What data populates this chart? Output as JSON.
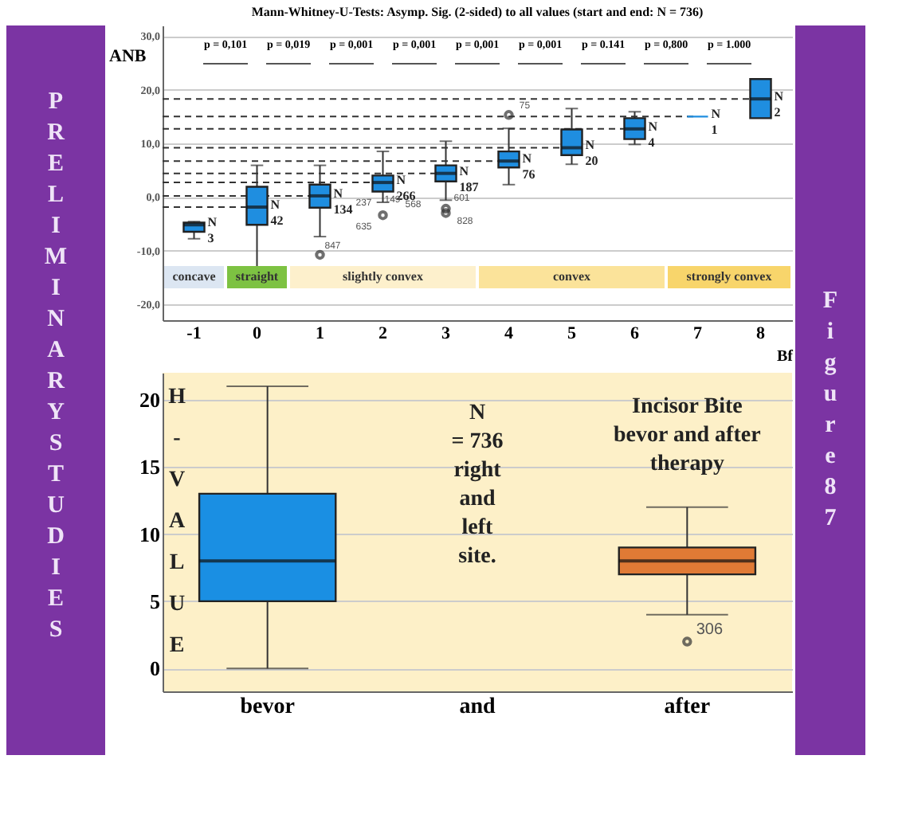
{
  "chart_data": [
    {
      "type": "box",
      "title": "Mann-Whitney-U-Tests: Asymp. Sig. (2-sided) to all values (start and end: N = 736)",
      "xlabel": "Bf",
      "ylabel": "ANB",
      "categories": [
        "-1",
        "0",
        "1",
        "2",
        "3",
        "4",
        "5",
        "6",
        "7",
        "8"
      ],
      "color": "#1f8ee0",
      "boxes": [
        {
          "low": -7.8,
          "q1": -6.5,
          "median": -5.2,
          "q3": -4.8,
          "high": -4.6
        },
        {
          "low": -13.7,
          "q1": -5.2,
          "median": -1.9,
          "q3": 1.9,
          "high": 5.9
        },
        {
          "low": -7.4,
          "q1": -2.0,
          "median": 0.2,
          "q3": 2.3,
          "high": 5.9,
          "outliers": [
            -10.8
          ]
        },
        {
          "low": -1.0,
          "q1": 1.0,
          "median": 2.7,
          "q3": 4.0,
          "high": 8.5,
          "outliers": [
            -3.4
          ]
        },
        {
          "low": -0.6,
          "q1": 2.9,
          "median": 4.4,
          "q3": 5.9,
          "high": 10.4,
          "outliers": [
            -2.2,
            -3.0
          ]
        },
        {
          "low": 2.3,
          "q1": 5.5,
          "median": 6.7,
          "q3": 8.5,
          "high": 12.8,
          "outliers": [
            15.3
          ]
        },
        {
          "low": 6.1,
          "q1": 7.8,
          "median": 9.2,
          "q3": 12.6,
          "high": 16.5
        },
        {
          "low": 9.8,
          "q1": 10.8,
          "median": 12.7,
          "q3": 14.7,
          "high": 15.9
        },
        {
          "low": 15.0,
          "q1": 15.0,
          "median": 15.0,
          "q3": 15.0,
          "high": 15.0
        },
        {
          "low": 14.7,
          "q1": 14.7,
          "median": 18.3,
          "q3": 22.0,
          "high": 22.0
        }
      ],
      "ylim": [
        -23,
        32
      ],
      "yticks": [
        {
          "value": -20,
          "label": "-20,0"
        },
        {
          "value": -10,
          "label": "-10,0"
        },
        {
          "value": 0,
          "label": "0,0"
        },
        {
          "value": 10,
          "label": "10,0"
        },
        {
          "value": 20,
          "label": "20,0"
        },
        {
          "value": 30,
          "label": "30,0"
        }
      ],
      "grid": "y",
      "ref_lines": [
        {
          "axis": "y",
          "value": -1.9,
          "line_style": "dashed",
          "color": "#333333"
        },
        {
          "axis": "y",
          "value": 0.2,
          "line_style": "dashed",
          "color": "#333333"
        },
        {
          "axis": "y",
          "value": 2.7,
          "line_style": "dashed",
          "color": "#333333"
        },
        {
          "axis": "y",
          "value": 4.4,
          "line_style": "dashed",
          "color": "#333333"
        },
        {
          "axis": "y",
          "value": 6.7,
          "line_style": "dashed",
          "color": "#333333"
        },
        {
          "axis": "y",
          "value": 9.2,
          "line_style": "dashed",
          "color": "#333333"
        },
        {
          "axis": "y",
          "value": 12.7,
          "line_style": "dashed",
          "color": "#333333"
        },
        {
          "axis": "y",
          "value": 15.0,
          "line_style": "dashed",
          "color": "#333333"
        },
        {
          "axis": "y",
          "value": 18.3,
          "line_style": "dashed",
          "color": "#333333"
        }
      ],
      "bands": [
        {
          "axis": "x",
          "from": "-1",
          "to": "-1",
          "label": "concave",
          "color": "#dce6f2"
        },
        {
          "axis": "x",
          "from": "0",
          "to": "0",
          "label": "straight",
          "color": "#7dc242"
        },
        {
          "axis": "x",
          "from": "1",
          "to": "3",
          "label": "slightly convex",
          "color": "#fdf0cc"
        },
        {
          "axis": "x",
          "from": "4",
          "to": "6",
          "label": "convex",
          "color": "#fbe39a"
        },
        {
          "axis": "x",
          "from": "7",
          "to": "8",
          "label": "strongly convex",
          "color": "#f8d56b"
        }
      ],
      "annotations": [
        "p = 0,101",
        "p = 0,019",
        "p = 0,001",
        "p = 0,001",
        "p = 0,001",
        "p = 0,001",
        "p = 0.141",
        "p = 0,800",
        "p = 1.000",
        {
          "text": "N\n3",
          "x": "-1",
          "y": -5.2
        },
        {
          "text": "N\n42",
          "x": "0",
          "y": -1.9
        },
        {
          "text": "N\n134",
          "x": "1",
          "y": 0.2
        },
        {
          "text": "N\n266",
          "x": "2",
          "y": 2.7
        },
        {
          "text": "N\n187",
          "x": "3",
          "y": 4.4
        },
        {
          "text": "N\n76",
          "x": "4",
          "y": 6.7
        },
        {
          "text": "N\n20",
          "x": "5",
          "y": 9.2
        },
        {
          "text": "N\n4",
          "x": "6",
          "y": 12.7
        },
        {
          "text": "N\n1",
          "x": "7",
          "y": 15.0
        },
        {
          "text": "N\n2",
          "x": "8",
          "y": 18.3
        },
        "847",
        "237",
        "149",
        "568",
        "635",
        "601",
        "828",
        "75",
        "PRELIMINARY STUDIES",
        "Figure 87"
      ]
    },
    {
      "type": "box",
      "ylabel": "H-VALUE",
      "categories": [
        "bevor",
        "and",
        "after"
      ],
      "colors": [
        "#1a8fe3",
        null,
        "#e07a35"
      ],
      "boxes": [
        {
          "low": 0,
          "q1": 5,
          "median": 8,
          "q3": 13,
          "high": 21
        },
        null,
        {
          "low": 4,
          "q1": 7,
          "median": 8,
          "q3": 9,
          "high": 12,
          "outliers": [
            2
          ]
        }
      ],
      "ylim": [
        -1.7,
        22
      ],
      "yticks": [
        0,
        5,
        10,
        15,
        20
      ],
      "grid": "y",
      "annotations": [
        "N\n= 736\nright\nand\nleft\nsite.",
        "Incisor Bite\nbevor and after\ntherapy",
        "306"
      ]
    }
  ]
}
